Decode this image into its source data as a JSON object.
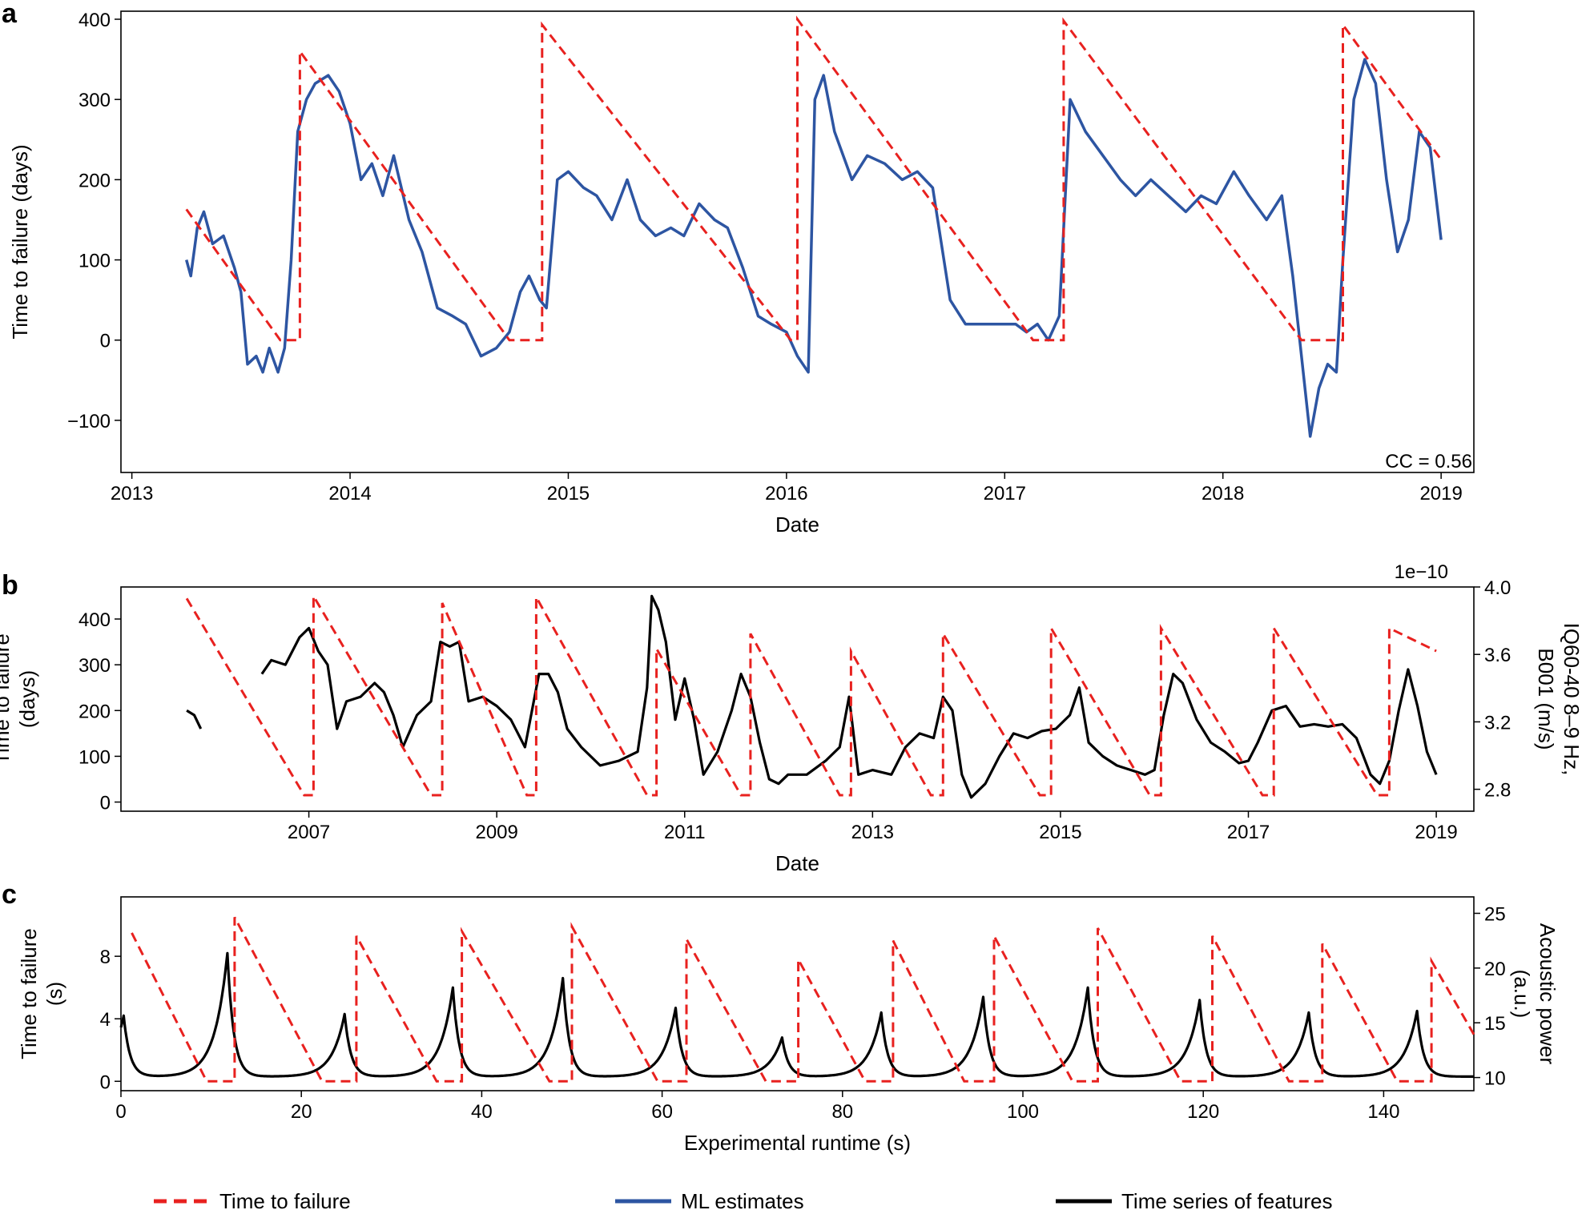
{
  "colors": {
    "ttf": "#e8211f",
    "ml": "#2d55a2",
    "features": "#000000"
  },
  "legend": [
    {
      "label": "Time to failure",
      "style": "dashed",
      "color": "#e8211f"
    },
    {
      "label": "ML estimates",
      "style": "solid",
      "color": "#2d55a2"
    },
    {
      "label": "Time series of features",
      "style": "solid",
      "color": "#000000"
    }
  ],
  "chart_data": [
    {
      "panel": "a",
      "type": "line",
      "xlabel": "Date",
      "ylabel": "Time to failure (days)",
      "xlim": [
        2012.95,
        2019.15
      ],
      "ylim": [
        -165,
        410
      ],
      "xticks": [
        2013,
        2014,
        2015,
        2016,
        2017,
        2018,
        2019
      ],
      "xtick_labels": [
        "2013",
        "2014",
        "2015",
        "2016",
        "2017",
        "2018",
        "2019"
      ],
      "yticks": [
        -100,
        0,
        100,
        200,
        300,
        400
      ],
      "ytick_labels": [
        "−100",
        "0",
        "100",
        "200",
        "300",
        "400"
      ],
      "annotation": "CC = 0.56",
      "series": [
        {
          "name": "Time to failure",
          "style": "dashed",
          "x": [
            2013.25,
            2013.68,
            2013.77,
            2013.77,
            2014.73,
            2014.88,
            2014.88,
            2016.02,
            2016.05,
            2016.05,
            2017.13,
            2017.27,
            2017.27,
            2018.36,
            2018.55,
            2018.55,
            2019.0
          ],
          "y": [
            163,
            0,
            0,
            360,
            0,
            0,
            393,
            0,
            0,
            400,
            0,
            0,
            398,
            0,
            0,
            393,
            225
          ]
        },
        {
          "name": "ML estimates",
          "style": "solid",
          "x": [
            2013.25,
            2013.27,
            2013.3,
            2013.33,
            2013.37,
            2013.42,
            2013.47,
            2013.5,
            2013.53,
            2013.57,
            2013.6,
            2013.63,
            2013.67,
            2013.7,
            2013.73,
            2013.76,
            2013.8,
            2013.84,
            2013.9,
            2013.95,
            2014.0,
            2014.05,
            2014.1,
            2014.15,
            2014.2,
            2014.27,
            2014.33,
            2014.4,
            2014.47,
            2014.53,
            2014.6,
            2014.67,
            2014.73,
            2014.78,
            2014.82,
            2014.87,
            2014.9,
            2014.95,
            2015.0,
            2015.07,
            2015.13,
            2015.2,
            2015.27,
            2015.33,
            2015.4,
            2015.47,
            2015.53,
            2015.6,
            2015.67,
            2015.73,
            2015.8,
            2015.87,
            2015.93,
            2016.0,
            2016.05,
            2016.1,
            2016.13,
            2016.17,
            2016.22,
            2016.3,
            2016.37,
            2016.45,
            2016.53,
            2016.6,
            2016.67,
            2016.75,
            2016.82,
            2016.88,
            2016.93,
            2017.0,
            2017.05,
            2017.1,
            2017.15,
            2017.2,
            2017.25,
            2017.3,
            2017.37,
            2017.45,
            2017.53,
            2017.6,
            2017.67,
            2017.75,
            2017.83,
            2017.9,
            2017.97,
            2018.05,
            2018.12,
            2018.2,
            2018.27,
            2018.32,
            2018.36,
            2018.4,
            2018.44,
            2018.48,
            2018.52,
            2018.55,
            2018.6,
            2018.65,
            2018.7,
            2018.75,
            2018.8,
            2018.85,
            2018.9,
            2018.95,
            2019.0
          ],
          "y": [
            100,
            80,
            140,
            160,
            120,
            130,
            90,
            60,
            -30,
            -20,
            -40,
            -10,
            -40,
            -10,
            100,
            260,
            300,
            320,
            330,
            310,
            270,
            200,
            220,
            180,
            230,
            150,
            110,
            40,
            30,
            20,
            -20,
            -10,
            10,
            60,
            80,
            50,
            40,
            200,
            210,
            190,
            180,
            150,
            200,
            150,
            130,
            140,
            130,
            170,
            150,
            140,
            90,
            30,
            20,
            10,
            -20,
            -40,
            300,
            330,
            260,
            200,
            230,
            220,
            200,
            210,
            190,
            50,
            20,
            20,
            20,
            20,
            20,
            10,
            20,
            0,
            30,
            300,
            260,
            230,
            200,
            180,
            200,
            180,
            160,
            180,
            170,
            210,
            180,
            150,
            180,
            80,
            -20,
            -120,
            -60,
            -30,
            -40,
            100,
            300,
            350,
            320,
            200,
            110,
            150,
            260,
            240,
            125
          ]
        }
      ]
    },
    {
      "panel": "b",
      "type": "line",
      "xlabel": "Date",
      "ylabel": "Time to failure\n(days)",
      "ylabel_right": "IQ60-40 8–9 Hz,\nB001 (m/s)",
      "right_scale_label": "1e−10",
      "xlim": [
        2005.0,
        2019.4
      ],
      "ylim": [
        -20,
        470
      ],
      "ylim_right": [
        2.67,
        4.0
      ],
      "xticks": [
        2007,
        2009,
        2011,
        2013,
        2015,
        2017,
        2019
      ],
      "xtick_labels": [
        "2007",
        "2009",
        "2011",
        "2013",
        "2015",
        "2017",
        "2019"
      ],
      "yticks": [
        0,
        100,
        200,
        300,
        400
      ],
      "ytick_labels": [
        "0",
        "100",
        "200",
        "300",
        "400"
      ],
      "yticks_right": [
        2.8,
        3.2,
        3.6,
        4.0
      ],
      "ytick_labels_right": [
        "2.8",
        "3.2",
        "3.6",
        "4.0"
      ],
      "series": [
        {
          "name": "Time to failure",
          "style": "dashed",
          "axis": "left",
          "x": [
            2005.7,
            2006.95,
            2007.05,
            2007.05,
            2008.3,
            2008.42,
            2008.42,
            2009.32,
            2009.42,
            2009.42,
            2010.6,
            2010.7,
            2010.7,
            2011.6,
            2011.7,
            2011.7,
            2012.65,
            2012.77,
            2012.77,
            2013.62,
            2013.75,
            2013.75,
            2014.78,
            2014.9,
            2014.9,
            2015.95,
            2016.07,
            2016.07,
            2017.15,
            2017.27,
            2017.27,
            2018.37,
            2018.5,
            2018.5,
            2019.0
          ],
          "y": [
            445,
            15,
            15,
            450,
            15,
            15,
            435,
            15,
            15,
            448,
            15,
            15,
            335,
            15,
            15,
            368,
            15,
            15,
            330,
            15,
            15,
            368,
            15,
            15,
            380,
            15,
            15,
            380,
            15,
            15,
            380,
            15,
            15,
            380,
            330
          ]
        },
        {
          "name": "Time series of features",
          "style": "solid",
          "axis": "left",
          "segments": [
            {
              "x": [
                2005.7,
                2005.78,
                2005.85
              ],
              "y": [
                200,
                190,
                160
              ]
            },
            {
              "x": [
                2006.5,
                2006.6,
                2006.75,
                2006.9,
                2007.0,
                2007.1,
                2007.2,
                2007.3,
                2007.4,
                2007.55,
                2007.7,
                2007.8,
                2007.9,
                2008.0,
                2008.15,
                2008.3,
                2008.4,
                2008.5,
                2008.6,
                2008.7,
                2008.85,
                2009.0,
                2009.15,
                2009.3,
                2009.45,
                2009.55,
                2009.65,
                2009.75,
                2009.9,
                2010.1,
                2010.3,
                2010.5,
                2010.6,
                2010.65,
                2010.72,
                2010.8,
                2010.9,
                2011.0,
                2011.1,
                2011.2,
                2011.35,
                2011.5,
                2011.6,
                2011.7,
                2011.8,
                2011.9,
                2012.0,
                2012.1,
                2012.3,
                2012.5,
                2012.65,
                2012.75,
                2012.85,
                2013.0,
                2013.2,
                2013.35,
                2013.5,
                2013.65,
                2013.75,
                2013.85,
                2013.95,
                2014.05,
                2014.2,
                2014.35,
                2014.5,
                2014.65,
                2014.8,
                2014.95,
                2015.1,
                2015.2,
                2015.3,
                2015.45,
                2015.6,
                2015.75,
                2015.9,
                2016.0,
                2016.1,
                2016.2,
                2016.3,
                2016.45,
                2016.6,
                2016.75,
                2016.9,
                2017.0,
                2017.1,
                2017.25,
                2017.4,
                2017.55,
                2017.7,
                2017.85,
                2018.0,
                2018.15,
                2018.3,
                2018.4,
                2018.5,
                2018.6,
                2018.7,
                2018.8,
                2018.9,
                2019.0
              ],
              "y": [
                280,
                310,
                300,
                360,
                380,
                330,
                300,
                160,
                220,
                230,
                260,
                240,
                190,
                120,
                190,
                220,
                350,
                340,
                350,
                220,
                230,
                210,
                180,
                120,
                280,
                280,
                240,
                160,
                120,
                80,
                90,
                110,
                250,
                450,
                420,
                350,
                180,
                270,
                180,
                60,
                110,
                200,
                280,
                230,
                130,
                50,
                40,
                60,
                60,
                90,
                120,
                230,
                60,
                70,
                60,
                120,
                150,
                140,
                230,
                200,
                60,
                10,
                40,
                100,
                150,
                140,
                155,
                160,
                190,
                250,
                130,
                100,
                80,
                70,
                60,
                70,
                190,
                280,
                260,
                180,
                130,
                110,
                85,
                90,
                130,
                200,
                210,
                165,
                170,
                165,
                170,
                140,
                60,
                40,
                90,
                200,
                290,
                210,
                110,
                60
              ]
            }
          ]
        }
      ]
    },
    {
      "panel": "c",
      "type": "line",
      "xlabel": "Experimental runtime (s)",
      "ylabel": "Time to failure\n(s)",
      "ylabel_right": "Acoustic power\n(a.u.)",
      "xlim": [
        0,
        150
      ],
      "ylim": [
        -0.6,
        11.8
      ],
      "ylim_right": [
        8.8,
        26.5
      ],
      "xticks": [
        0,
        20,
        40,
        60,
        80,
        100,
        120,
        140
      ],
      "xtick_labels": [
        "0",
        "20",
        "40",
        "60",
        "80",
        "100",
        "120",
        "140"
      ],
      "yticks": [
        0,
        4,
        8
      ],
      "ytick_labels": [
        "0",
        "4",
        "8"
      ],
      "yticks_right": [
        10,
        15,
        20,
        25
      ],
      "ytick_labels_right": [
        "10",
        "15",
        "20",
        "25"
      ],
      "series": [
        {
          "name": "Time to failure",
          "style": "dashed",
          "axis": "left",
          "x": [
            1.2,
            9.5,
            12.6,
            12.6,
            22.3,
            26.1,
            26.1,
            35.0,
            37.8,
            37.8,
            47.5,
            50.0,
            50.0,
            59.5,
            62.7,
            62.7,
            71.5,
            75.1,
            75.1,
            82.5,
            85.6,
            85.6,
            93.5,
            96.8,
            96.8,
            105.5,
            108.3,
            108.3,
            117.5,
            121.0,
            121.0,
            129.5,
            133.2,
            133.2,
            141.5,
            145.3,
            145.3,
            150.0
          ],
          "y": [
            9.5,
            0,
            0,
            10.5,
            0,
            0,
            9.3,
            0,
            0,
            9.6,
            0,
            0,
            9.9,
            0,
            0,
            9.1,
            0,
            0,
            7.8,
            0,
            0,
            9.0,
            0,
            0,
            9.3,
            0,
            0,
            9.8,
            0,
            0,
            9.3,
            0,
            0,
            8.8,
            0,
            0,
            7.7,
            3.0
          ]
        },
        {
          "name": "Time series of features",
          "style": "solid",
          "axis": "left",
          "peaks": [
            {
              "x": 0.3,
              "y": 4.2
            },
            {
              "x": 11.8,
              "y": 8.2
            },
            {
              "x": 24.8,
              "y": 4.3
            },
            {
              "x": 36.8,
              "y": 6.0
            },
            {
              "x": 49.0,
              "y": 6.6
            },
            {
              "x": 61.5,
              "y": 4.7
            },
            {
              "x": 73.3,
              "y": 2.8
            },
            {
              "x": 84.3,
              "y": 4.4
            },
            {
              "x": 95.6,
              "y": 5.4
            },
            {
              "x": 107.2,
              "y": 6.0
            },
            {
              "x": 119.6,
              "y": 5.2
            },
            {
              "x": 131.7,
              "y": 4.4
            },
            {
              "x": 143.7,
              "y": 4.5
            }
          ],
          "baseline": 0.3
        }
      ]
    }
  ]
}
